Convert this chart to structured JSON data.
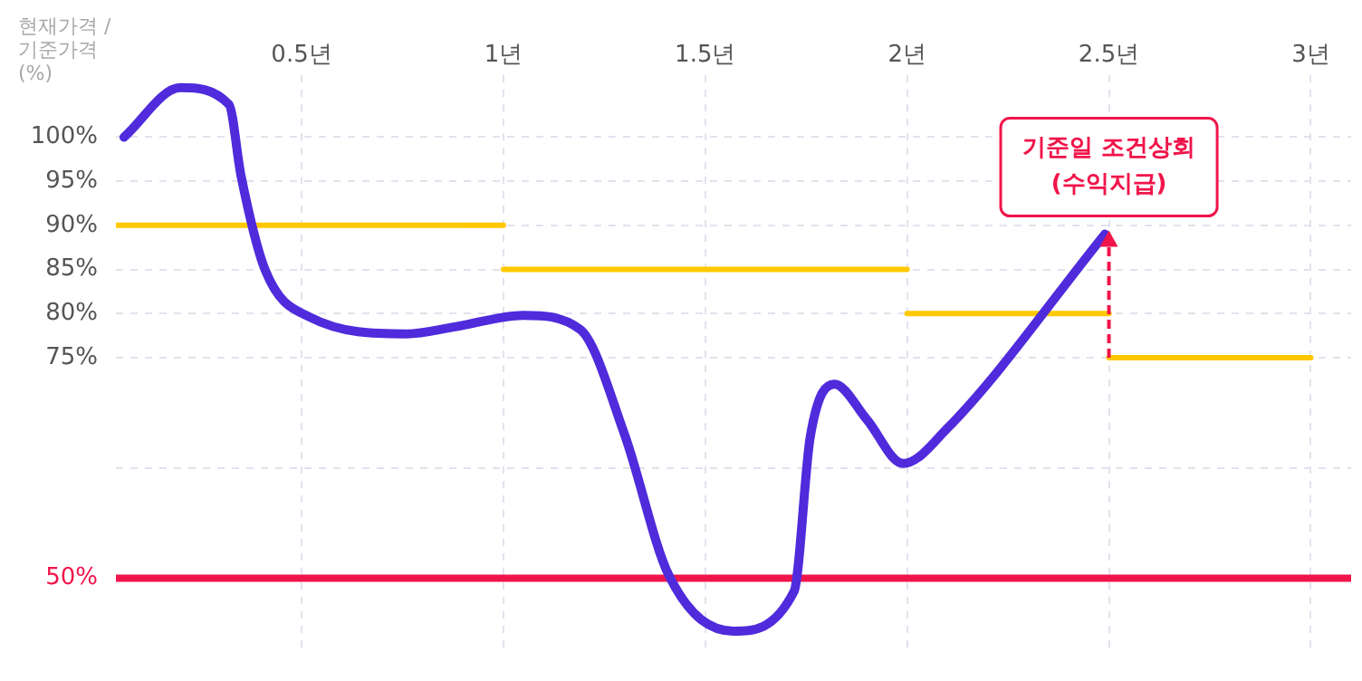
{
  "chart_data": {
    "type": "line",
    "ylabel": "현재가격 / 기준가격 (%)",
    "xlim": [
      0.04,
      3.1
    ],
    "ylim": [
      42,
      107
    ],
    "xticks": [
      {
        "value": 0.5,
        "label": "0.5년"
      },
      {
        "value": 1,
        "label": "1년"
      },
      {
        "value": 1.5,
        "label": "1.5년"
      },
      {
        "value": 2,
        "label": "2년"
      },
      {
        "value": 2.5,
        "label": "2.5년"
      },
      {
        "value": 3,
        "label": "3년"
      }
    ],
    "yticks": [
      {
        "value": 50,
        "label": "50%"
      },
      {
        "value": 62.5,
        "label": null
      },
      {
        "value": 75,
        "label": "75%"
      },
      {
        "value": 80,
        "label": "80%"
      },
      {
        "value": 85,
        "label": "85%"
      },
      {
        "value": 90,
        "label": "90%"
      },
      {
        "value": 95,
        "label": "95%"
      },
      {
        "value": 100,
        "label": "100%"
      }
    ],
    "grid": true,
    "series": [
      {
        "color": "#4f2bdc",
        "x": [
          0.06,
          0.2,
          0.32,
          0.35,
          0.41,
          0.52,
          0.76,
          0.88,
          1.05,
          1.19,
          1.3,
          1.41,
          1.57,
          1.72,
          1.76,
          1.82,
          1.9,
          1.99,
          2.1,
          2.49
        ],
        "values": [
          100,
          105.6,
          103.7,
          95.6,
          84.9,
          79.6,
          77.7,
          78.5,
          79.8,
          78.2,
          66.3,
          50.3,
          44,
          48.5,
          66,
          72,
          68,
          63,
          67,
          89
        ]
      },
      {
        "color": "#ffc800",
        "x": [
          0.04,
          1
        ],
        "values": [
          90,
          90
        ]
      },
      {
        "color": "#ffc800",
        "x": [
          1,
          2
        ],
        "values": [
          85,
          85
        ]
      },
      {
        "color": "#ffc800",
        "x": [
          2,
          2.5
        ],
        "values": [
          80,
          80
        ]
      },
      {
        "color": "#ffc800",
        "x": [
          2.5,
          3
        ],
        "values": [
          75,
          75
        ]
      }
    ],
    "ref_lines": [
      {
        "axis": "y",
        "value": 50,
        "color": "#f0154a"
      }
    ],
    "annotations": [
      {
        "text": "기준일 조건상회\n(수익지급)",
        "x": 2.5,
        "y": 89
      }
    ]
  }
}
